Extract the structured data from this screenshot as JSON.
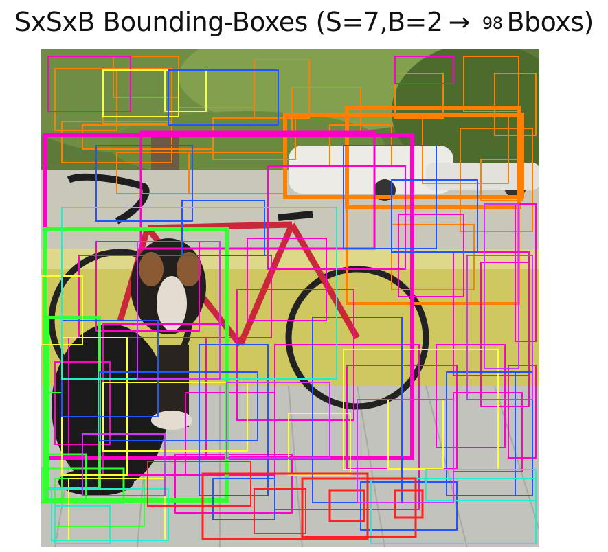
{
  "title": {
    "prefix": "SxSxB Bounding-Boxes (S=7,B=2",
    "arrow": "→",
    "count": "98",
    "suffix": "Bboxs)"
  },
  "scene": {
    "icon": "photo-dog-bicycle-porch"
  },
  "colors": {
    "orange": "#ff7f00",
    "magenta": "#ff00cc",
    "green": "#33ff33",
    "blue": "#2255ff",
    "yellow": "#ffff33",
    "cyan": "#22eecc",
    "red": "#ff2222",
    "purple": "#cc33ff"
  }
}
